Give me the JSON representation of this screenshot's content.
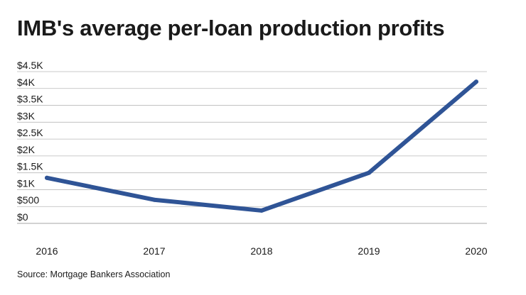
{
  "chart_data": {
    "type": "line",
    "title": "IMB's average per-loan production profits",
    "source": "Source: Mortgage Bankers Association",
    "x": [
      "2016",
      "2017",
      "2018",
      "2019",
      "2020"
    ],
    "series": [
      {
        "name": "Average per-loan production profit",
        "values": [
          1350,
          700,
          380,
          1500,
          4200
        ]
      }
    ],
    "y_ticks": [
      {
        "value": 0,
        "label": "$0"
      },
      {
        "value": 500,
        "label": "$500"
      },
      {
        "value": 1000,
        "label": "$1K"
      },
      {
        "value": 1500,
        "label": "$1.5K"
      },
      {
        "value": 2000,
        "label": "$2K"
      },
      {
        "value": 2500,
        "label": "$2.5K"
      },
      {
        "value": 3000,
        "label": "$3K"
      },
      {
        "value": 3500,
        "label": "$3.5K"
      },
      {
        "value": 4000,
        "label": "$4K"
      },
      {
        "value": 4500,
        "label": "$4.5K"
      }
    ],
    "ylim": [
      0,
      4500
    ],
    "xlabel": "",
    "ylabel": "",
    "grid": true,
    "line_color": "#2f5496",
    "grid_color": "#b8b8b8"
  }
}
